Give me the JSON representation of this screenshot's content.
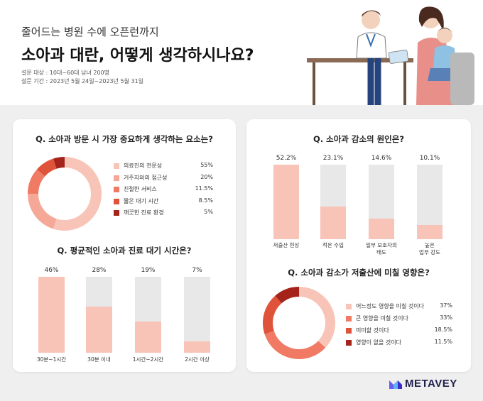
{
  "header": {
    "subtitle": "줄어드는 병원 수에 오픈런까지",
    "title": "소아과 대란, 어떻게 생각하시나요?",
    "survey_target": "설문 대상 : 10대~60대 남녀 200명",
    "survey_period": "설문 기간 : 2023년 5월 24일~2023년 5월 31일"
  },
  "colors": {
    "light": "#f8c4b8",
    "mid_light": "#f5a898",
    "mid": "#f07a63",
    "deep": "#e0533b",
    "dark": "#a4231a",
    "track": "#e8e8e8"
  },
  "chart_data": [
    {
      "type": "pie",
      "donut": true,
      "title": "Q. 소아과 방문 시 가장 중요하게 생각하는 요소는?",
      "legend_position": "right",
      "labels": [
        "의료진의 전문성",
        "거주지와의 접근성",
        "친절한 서비스",
        "짧은 대기 시간",
        "깨끗한 진료 환경"
      ],
      "values": [
        55,
        20,
        11.5,
        8.5,
        5
      ],
      "value_labels": [
        "55%",
        "20%",
        "11.5%",
        "8.5%",
        "5%"
      ],
      "colors": [
        "#f8c4b8",
        "#f5a898",
        "#f07a63",
        "#e0533b",
        "#a4231a"
      ]
    },
    {
      "type": "bar",
      "title": "Q. 평균적인 소아과 진료 대기 시간은?",
      "categories": [
        "30분~1시간",
        "30분 이내",
        "1시간~2시간",
        "2시간 이상"
      ],
      "values": [
        46,
        28,
        19,
        7
      ],
      "value_labels": [
        "46%",
        "28%",
        "19%",
        "7%"
      ],
      "ylim": [
        0,
        46
      ]
    },
    {
      "type": "bar",
      "title": "Q. 소아과 감소의 원인은?",
      "categories": [
        "저출산 현상",
        "적은 수입",
        "일부 보호자의\n태도",
        "높은\n업무 강도"
      ],
      "values": [
        52.2,
        23.1,
        14.6,
        10.1
      ],
      "value_labels": [
        "52.2%",
        "23.1%",
        "14.6%",
        "10.1%"
      ],
      "ylim": [
        0,
        52.2
      ]
    },
    {
      "type": "pie",
      "donut": true,
      "title": "Q. 소아과 감소가 저출산에 미칠 영향은?",
      "legend_position": "right",
      "labels": [
        "어느정도 영향을 미칠 것이다",
        "큰 영향을 미칠 것이다",
        "미미할 것이다",
        "영향이 없을 것이다"
      ],
      "values": [
        37,
        33,
        18.5,
        11.5
      ],
      "value_labels": [
        "37%",
        "33%",
        "18.5%",
        "11.5%"
      ],
      "colors": [
        "#f8c4b8",
        "#f07a63",
        "#e0533b",
        "#a4231a"
      ]
    }
  ],
  "logo": {
    "text": "METAVEY"
  }
}
